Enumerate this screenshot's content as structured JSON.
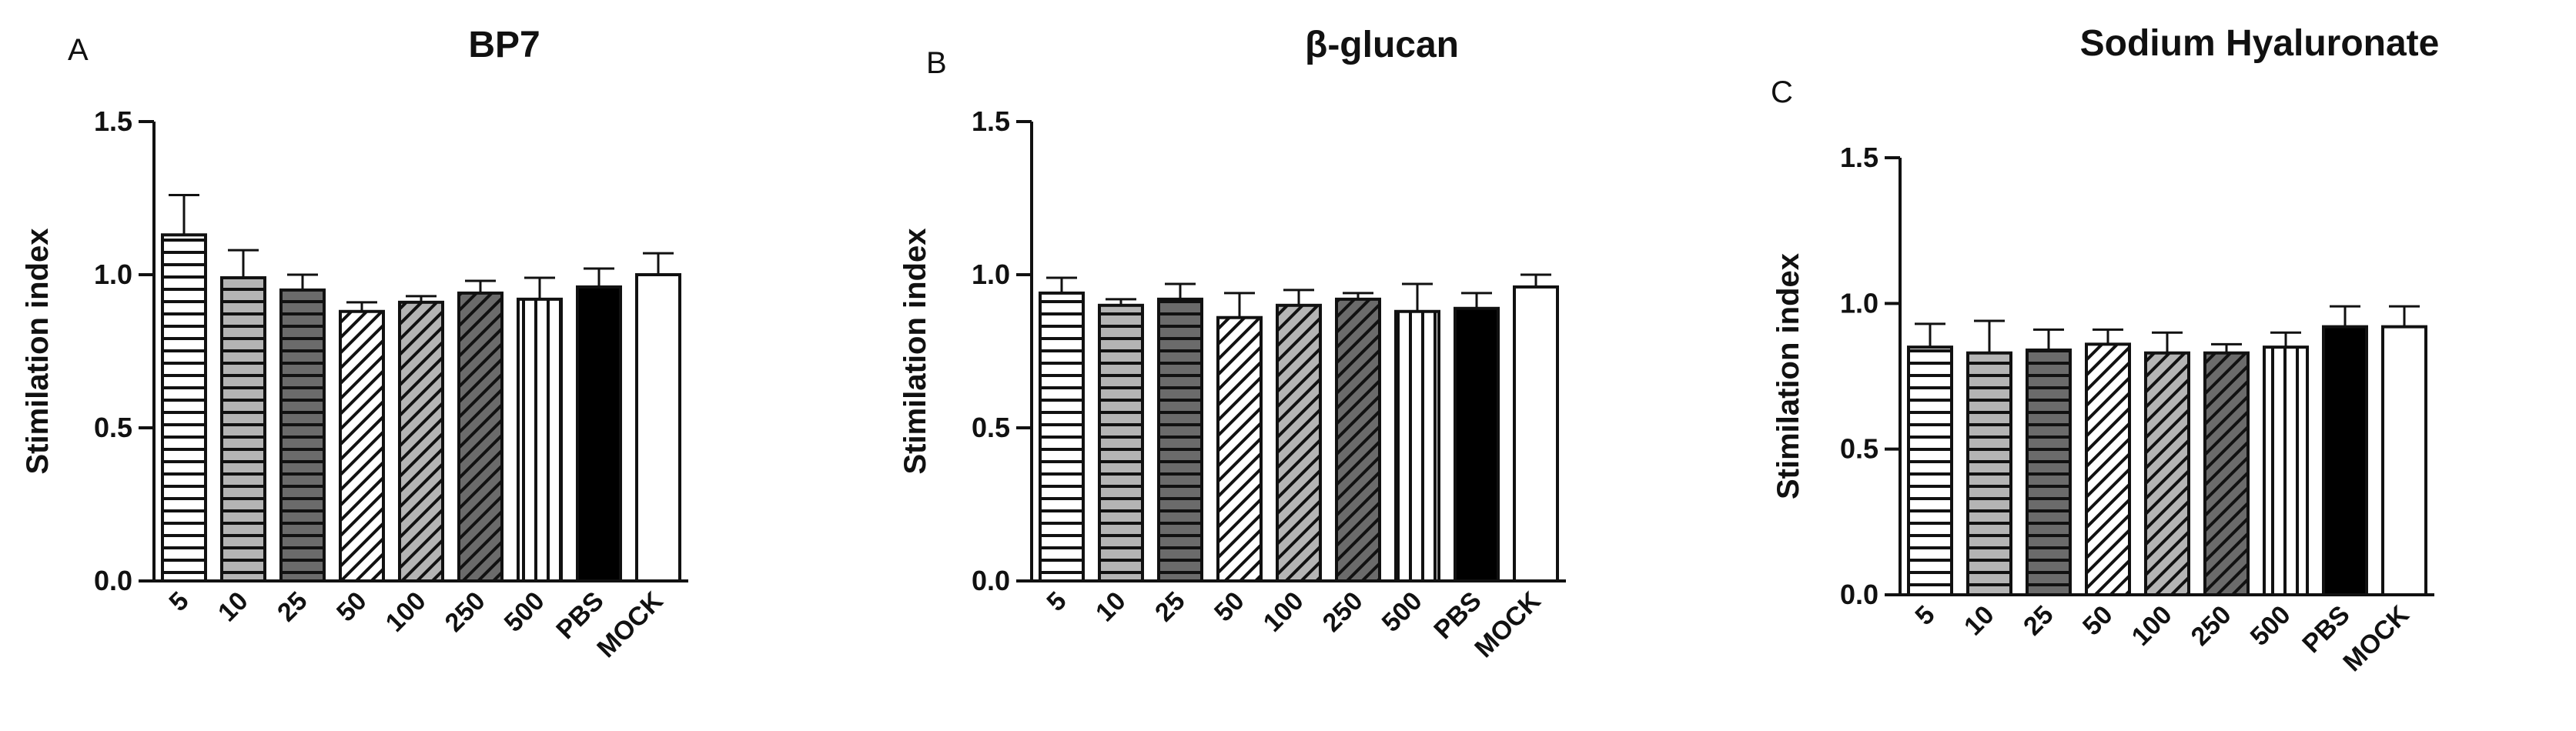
{
  "chart_data": [
    {
      "type": "bar",
      "panel_letter": "A",
      "title": "BP7",
      "ylabel": "Stimilation index",
      "xlabel": "",
      "ylim": [
        0,
        1.5
      ],
      "yticks": [
        "0.0",
        "0.5",
        "1.0",
        "1.5"
      ],
      "categories": [
        "5",
        "10",
        "25",
        "50",
        "100",
        "250",
        "500",
        "PBS",
        "MOCK"
      ],
      "values": [
        1.13,
        0.99,
        0.95,
        0.88,
        0.91,
        0.94,
        0.92,
        0.96,
        1.0
      ],
      "errors": [
        0.13,
        0.09,
        0.05,
        0.03,
        0.02,
        0.04,
        0.07,
        0.06,
        0.07
      ]
    },
    {
      "type": "bar",
      "panel_letter": "B",
      "title": "β-glucan",
      "ylabel": "Stimilation index",
      "xlabel": "",
      "ylim": [
        0,
        1.5
      ],
      "yticks": [
        "0.0",
        "0.5",
        "1.0",
        "1.5"
      ],
      "categories": [
        "5",
        "10",
        "25",
        "50",
        "100",
        "250",
        "500",
        "PBS",
        "MOCK"
      ],
      "values": [
        0.94,
        0.9,
        0.92,
        0.86,
        0.9,
        0.92,
        0.88,
        0.89,
        0.96
      ],
      "errors": [
        0.05,
        0.02,
        0.05,
        0.08,
        0.05,
        0.02,
        0.09,
        0.05,
        0.04
      ]
    },
    {
      "type": "bar",
      "panel_letter": "C",
      "title": "Sodium Hyaluronate",
      "ylabel": "Stimilation index",
      "xlabel": "",
      "ylim": [
        0,
        1.5
      ],
      "yticks": [
        "0.0",
        "0.5",
        "1.0",
        "1.5"
      ],
      "categories": [
        "5",
        "10",
        "25",
        "50",
        "100",
        "250",
        "500",
        "PBS",
        "MOCK"
      ],
      "values": [
        0.85,
        0.83,
        0.84,
        0.86,
        0.83,
        0.83,
        0.85,
        0.92,
        0.92
      ],
      "errors": [
        0.08,
        0.11,
        0.07,
        0.05,
        0.07,
        0.03,
        0.05,
        0.07,
        0.07
      ]
    }
  ],
  "fills": [
    "hlines",
    "gray-hlines",
    "dark-hlines",
    "diag",
    "gray-diag",
    "dark-diag",
    "vlines",
    "#000000",
    "#ffffff"
  ]
}
